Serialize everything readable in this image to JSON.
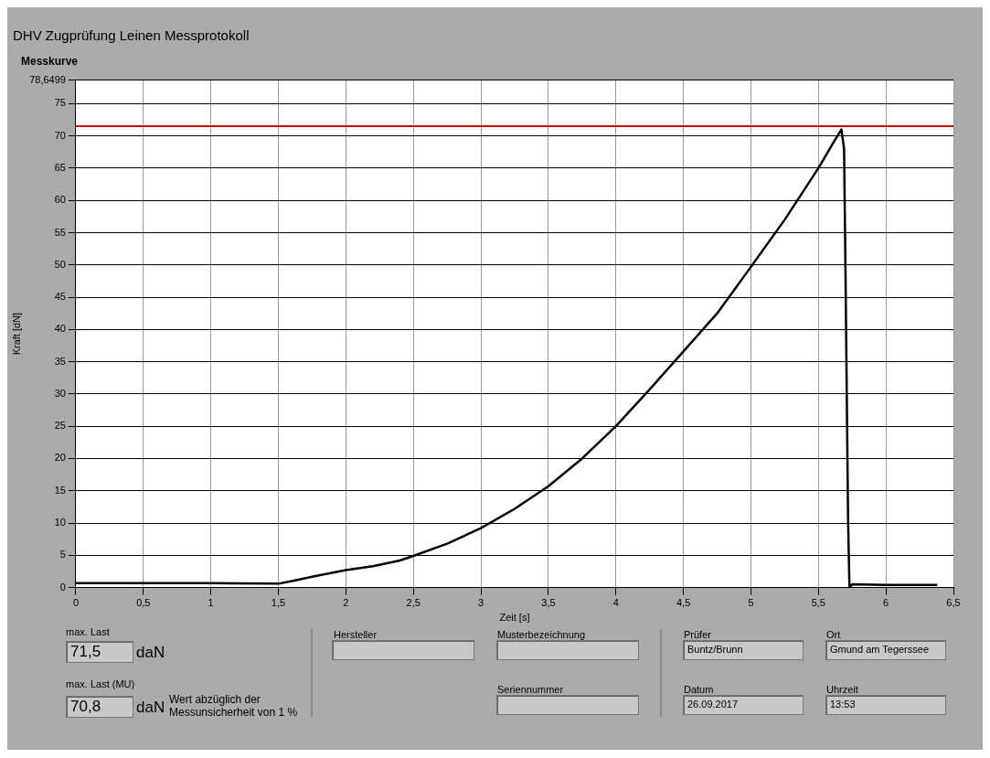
{
  "chart_data": {
    "type": "line",
    "title": "DHV Zugprüfung Leinen Messprotokoll",
    "subtitle": "Messkurve",
    "xlabel": "Zeit [s]",
    "ylabel": "Kraft [dN]",
    "x": [
      0,
      0.5,
      1,
      1.5,
      1.6,
      1.8,
      2,
      2.2,
      2.4,
      2.5,
      2.75,
      3,
      3.25,
      3.5,
      3.75,
      4,
      4.25,
      4.5,
      4.75,
      5,
      5.25,
      5.5,
      5.6,
      5.67,
      5.69,
      5.7,
      5.71,
      5.72,
      5.73,
      5.75,
      6,
      6.38
    ],
    "series": [
      {
        "color": "#000000",
        "values": [
          0.7,
          0.7,
          0.7,
          0.6,
          1.0,
          1.9,
          2.7,
          3.3,
          4.2,
          4.9,
          6.8,
          9.2,
          12.2,
          15.7,
          20.0,
          25.0,
          30.7,
          36.6,
          42.5,
          49.7,
          57.0,
          65.0,
          68.6,
          71.0,
          68,
          50,
          30,
          10,
          0,
          0.5,
          0.4,
          0.4
        ]
      }
    ],
    "xlim": [
      0,
      6.5
    ],
    "ylim": [
      0,
      78.6499
    ],
    "xticks": [
      0,
      {
        "value": 0.5,
        "label": "0,5"
      },
      1,
      {
        "value": 1.5,
        "label": "1,5"
      },
      2,
      {
        "value": 2.5,
        "label": "2,5"
      },
      3,
      {
        "value": 3.5,
        "label": "3,5"
      },
      4,
      {
        "value": 4.5,
        "label": "4,5"
      },
      5,
      {
        "value": 5.5,
        "label": "5,5"
      },
      6,
      {
        "value": 6.5,
        "label": "6,5"
      }
    ],
    "yticks": [
      0,
      5,
      10,
      15,
      20,
      25,
      30,
      35,
      40,
      45,
      50,
      55,
      60,
      65,
      70,
      75,
      {
        "value": 78.6499,
        "label": "78,6499"
      }
    ],
    "grid": true,
    "legend": false,
    "ref_lines": [
      {
        "axis": "y",
        "value": 71.5,
        "color": "#cc0000"
      }
    ],
    "annotations": [
      "max. Last",
      "71,5",
      "daN",
      "max. Last (MU)",
      "70,8",
      "daN",
      "Wert abzüglich der Messunsicherheit von 1 %",
      "Hersteller",
      "Musterbezeichnung",
      "Seriennummer",
      "Prüfer",
      "Buntz/Brunn",
      "Ort",
      "Gmund am Tegerssee",
      "Datum",
      "26.09.2017",
      "Uhrzeit",
      "13:53"
    ]
  }
}
